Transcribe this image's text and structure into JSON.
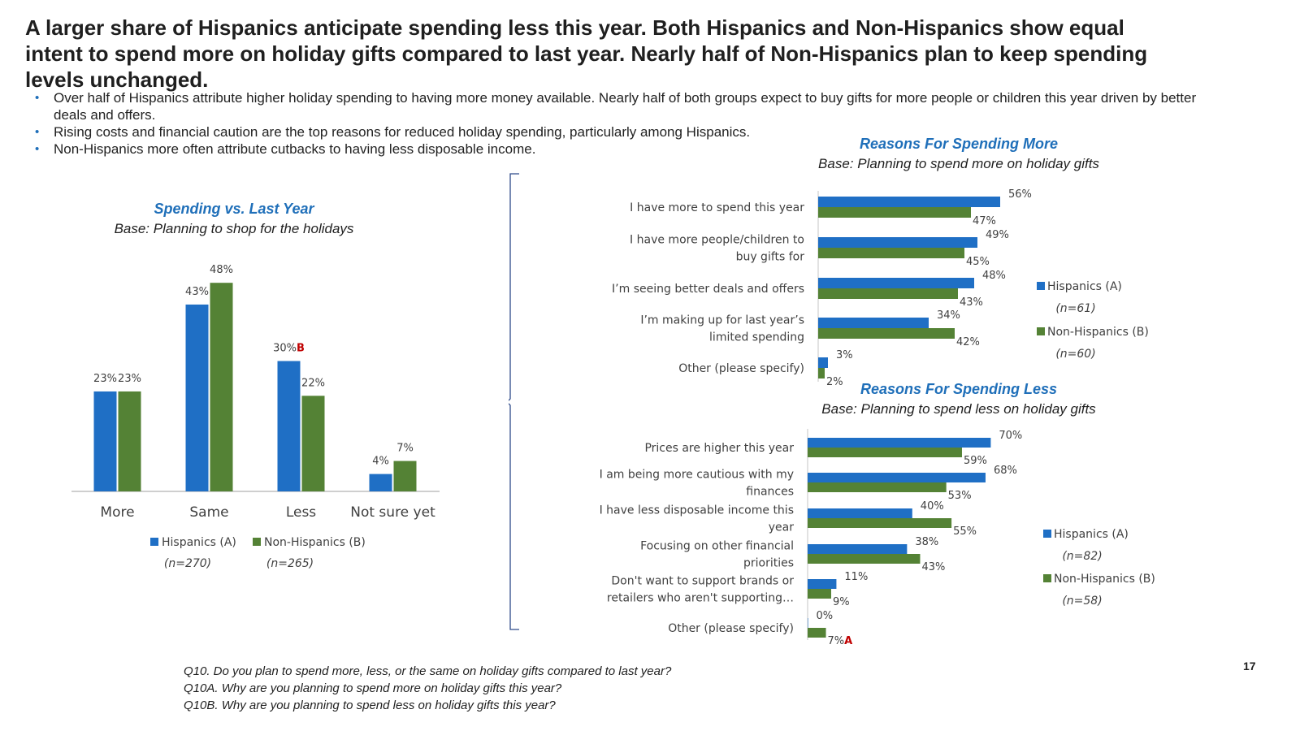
{
  "headline": "A larger share of Hispanics anticipate spending less this year. Both Hispanics and Non-Hispanics show equal intent to spend more on holiday gifts compared to last year. Nearly half of Non-Hispanics plan to keep spending levels unchanged.",
  "bullets": [
    "Over half of Hispanics attribute higher holiday spending to having more money available. Nearly half of both groups expect to buy gifts for more people or children this year driven by better deals and offers.",
    "Rising costs and financial caution are the top reasons for reduced holiday spending, particularly among Hispanics.",
    "Non-Hispanics more often attribute cutbacks to having less disposable income."
  ],
  "colors": {
    "hispanic": "#1f6fc5",
    "non_hispanic": "#548235",
    "accent_title": "#1f6fb9",
    "significance": "#c00000"
  },
  "chart_data": [
    {
      "type": "bar",
      "title": "Spending vs. Last Year",
      "subtitle": "Base: Planning to shop for the holidays",
      "categories": [
        "More",
        "Same",
        "Less",
        "Not sure yet"
      ],
      "series": [
        {
          "name": "Hispanics (A)",
          "n": "(n=270)",
          "values": [
            23,
            43,
            30,
            4
          ],
          "value_labels": [
            "23%",
            "43%",
            "30%",
            "4%"
          ],
          "sig": [
            "",
            "",
            "B",
            ""
          ]
        },
        {
          "name": "Non-Hispanics (B)",
          "n": "(n=265)",
          "values": [
            23,
            48,
            22,
            7
          ],
          "value_labels": [
            "23%",
            "48%",
            "22%",
            "7%"
          ],
          "sig": [
            "",
            "",
            "",
            ""
          ]
        }
      ],
      "ylim": [
        0,
        60
      ],
      "legend": "bottom"
    },
    {
      "type": "bar",
      "orientation": "horizontal",
      "title": "Reasons For Spending More",
      "subtitle": "Base: Planning to spend more on holiday gifts",
      "categories": [
        [
          "I have more to spend this year"
        ],
        [
          "I have more people/children to",
          "buy gifts for"
        ],
        [
          "I’m seeing better deals and offers"
        ],
        [
          "I’m making up for last year’s",
          "limited spending"
        ],
        [
          "Other (please specify)"
        ]
      ],
      "series": [
        {
          "name": "Hispanics (A)",
          "n": "(n=61)",
          "values": [
            56,
            49,
            48,
            34,
            3
          ],
          "value_labels": [
            "56%",
            "49%",
            "48%",
            "34%",
            "3%"
          ],
          "sig": [
            "",
            "",
            "",
            "",
            ""
          ]
        },
        {
          "name": "Non-Hispanics (B)",
          "n": "(n=60)",
          "values": [
            47,
            45,
            43,
            42,
            2
          ],
          "value_labels": [
            "47%",
            "45%",
            "43%",
            "42%",
            "2%"
          ],
          "sig": [
            "",
            "",
            "",
            "",
            ""
          ]
        }
      ],
      "legend": "right"
    },
    {
      "type": "bar",
      "orientation": "horizontal",
      "title": "Reasons For Spending Less",
      "subtitle": "Base: Planning to spend less on holiday gifts",
      "categories": [
        [
          "Prices are higher this year"
        ],
        [
          "I am being more cautious with my",
          "finances"
        ],
        [
          "I have less disposable income this",
          "year"
        ],
        [
          "Focusing on other financial",
          "priorities"
        ],
        [
          "Don't want to support brands or",
          "retailers who aren't supporting…"
        ],
        [
          "Other (please specify)"
        ]
      ],
      "series": [
        {
          "name": "Hispanics (A)",
          "n": "(n=82)",
          "values": [
            70,
            68,
            40,
            38,
            11,
            0
          ],
          "value_labels": [
            "70%",
            "68%",
            "40%",
            "38%",
            "11%",
            "0%"
          ],
          "sig": [
            "",
            "",
            "",
            "",
            "",
            ""
          ]
        },
        {
          "name": "Non-Hispanics (B)",
          "n": "(n=58)",
          "values": [
            59,
            53,
            55,
            43,
            9,
            7
          ],
          "value_labels": [
            "59%",
            "53%",
            "55%",
            "43%",
            "9%",
            "7%"
          ],
          "sig": [
            "",
            "",
            "",
            "",
            "",
            "A"
          ]
        }
      ],
      "legend": "right"
    }
  ],
  "footnotes": [
    "Q10. Do you plan to spend more, less, or the same on holiday gifts compared to last year?",
    "Q10A. Why are you planning to spend more on holiday gifts this year?",
    "Q10B. Why are you planning to spend less on holiday gifts this year?"
  ],
  "page_number": "17"
}
